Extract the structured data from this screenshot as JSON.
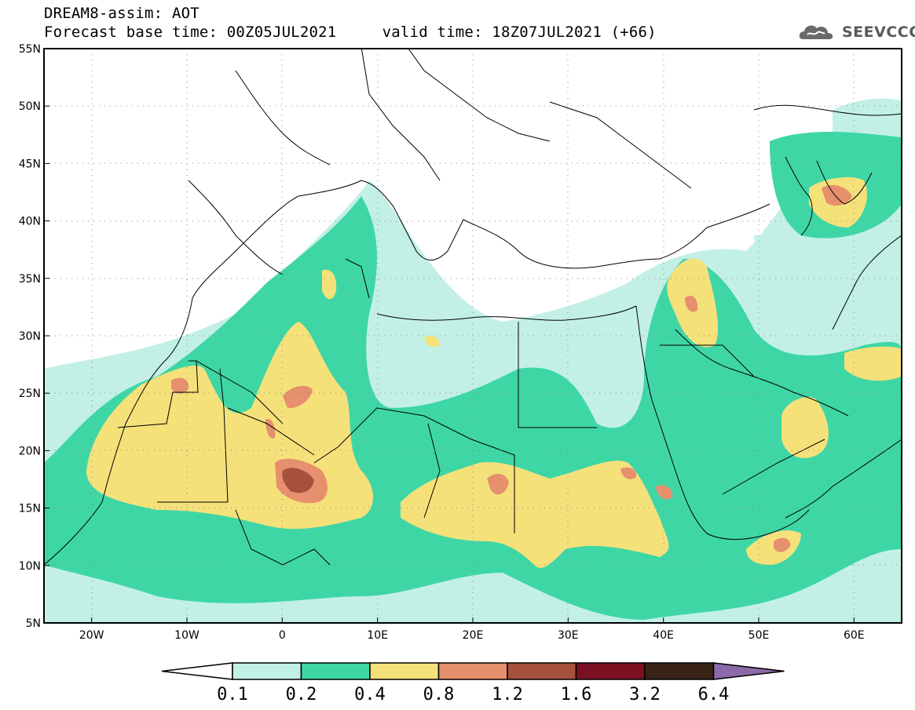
{
  "header": {
    "line1": "DREAM8-assim: AOT",
    "line2": "Forecast base time: 00Z05JUL2021     valid time: 18Z07JUL2021 (+66)"
  },
  "logo": {
    "text": "SEEVCCC",
    "icon": "cloud-icon"
  },
  "map": {
    "projection": "equirectangular",
    "lon_range": [
      -25,
      65
    ],
    "lat_range": [
      5,
      55
    ],
    "grid": "dotted",
    "lat_ticks": [
      {
        "v": 55,
        "label": "55N"
      },
      {
        "v": 50,
        "label": "50N"
      },
      {
        "v": 45,
        "label": "45N"
      },
      {
        "v": 40,
        "label": "40N"
      },
      {
        "v": 35,
        "label": "35N"
      },
      {
        "v": 30,
        "label": "30N"
      },
      {
        "v": 25,
        "label": "25N"
      },
      {
        "v": 20,
        "label": "20N"
      },
      {
        "v": 15,
        "label": "15N"
      },
      {
        "v": 10,
        "label": "10N"
      },
      {
        "v": 5,
        "label": "5N"
      }
    ],
    "lon_ticks": [
      {
        "v": -20,
        "label": "20W"
      },
      {
        "v": -10,
        "label": "10W"
      },
      {
        "v": 0,
        "label": "0"
      },
      {
        "v": 10,
        "label": "10E"
      },
      {
        "v": 20,
        "label": "20E"
      },
      {
        "v": 30,
        "label": "30E"
      },
      {
        "v": 40,
        "label": "40E"
      },
      {
        "v": 50,
        "label": "50E"
      },
      {
        "v": 60,
        "label": "60E"
      }
    ]
  },
  "colorbar": {
    "under_color": "#ffffff",
    "over_color": "#8a6aa8",
    "bins": [
      {
        "color": "#c2f0e6"
      },
      {
        "color": "#3fd6a6"
      },
      {
        "color": "#f5e17a"
      },
      {
        "color": "#e6906e"
      },
      {
        "color": "#a8503e"
      },
      {
        "color": "#7a1022"
      },
      {
        "color": "#3a2418"
      }
    ],
    "labels": [
      "0.1",
      "0.2",
      "0.4",
      "0.8",
      "1.2",
      "1.6",
      "3.2",
      "6.4"
    ]
  }
}
